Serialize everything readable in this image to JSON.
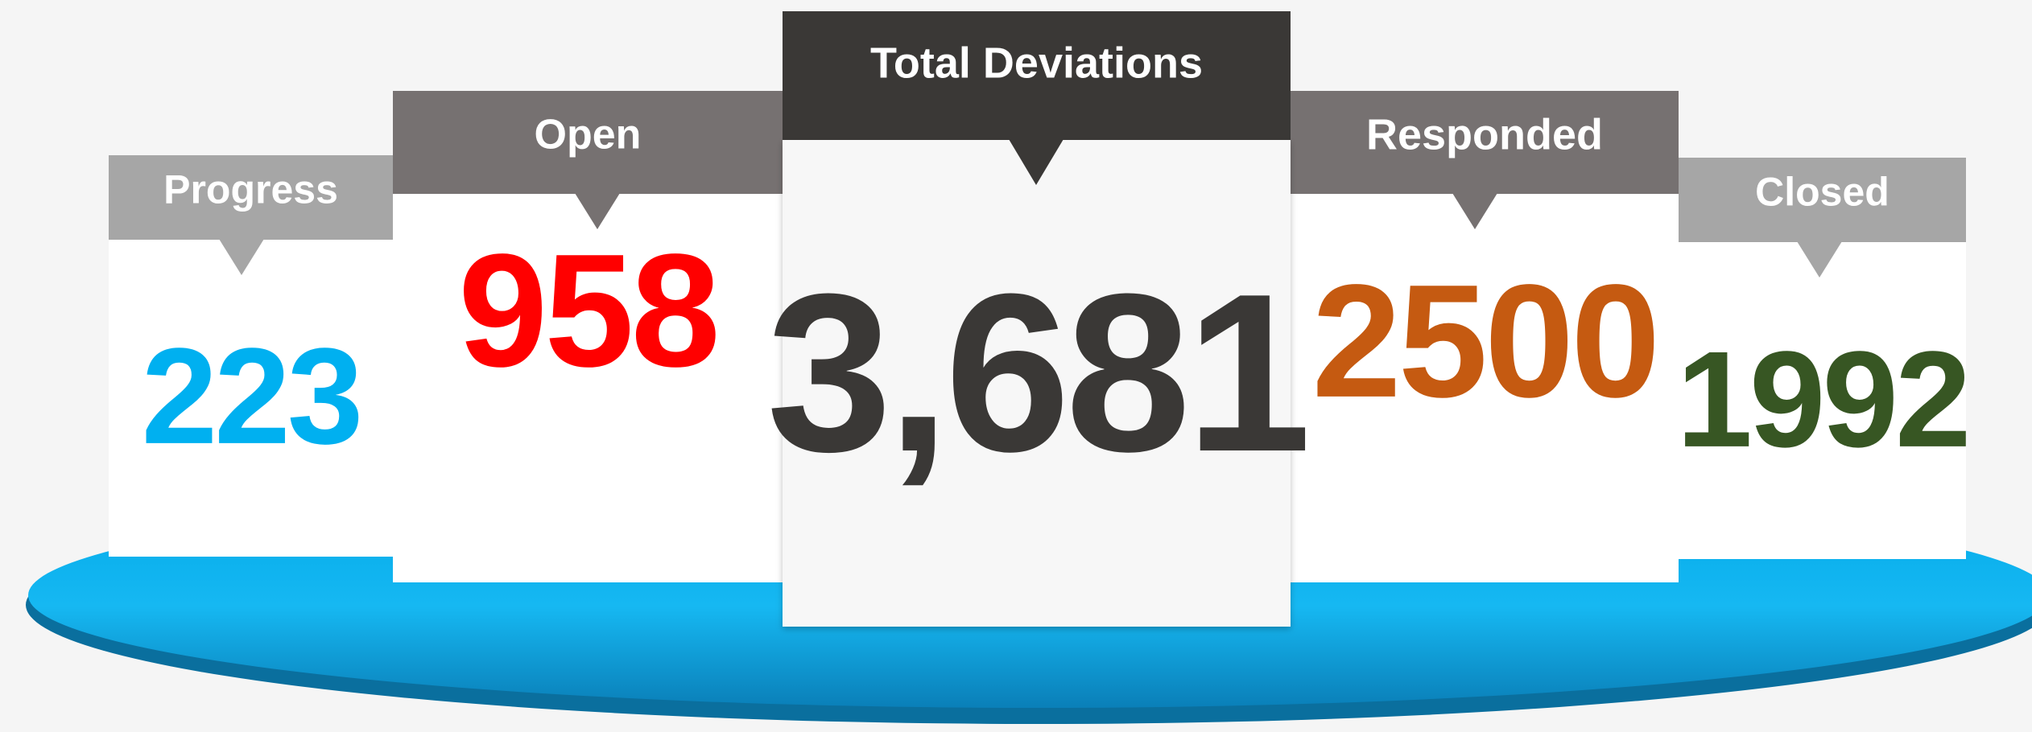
{
  "cards": [
    {
      "label": "Progress",
      "value": 223,
      "color": "#00b0f0"
    },
    {
      "label": "Open",
      "value": 958,
      "color": "#ff0000"
    },
    {
      "label": "Total Deviations",
      "value": "3,681",
      "color": "#3a3836"
    },
    {
      "label": "Responded",
      "value": 2500,
      "color": "#c55a11"
    },
    {
      "label": "Closed",
      "value": 1992,
      "color": "#375623"
    }
  ]
}
